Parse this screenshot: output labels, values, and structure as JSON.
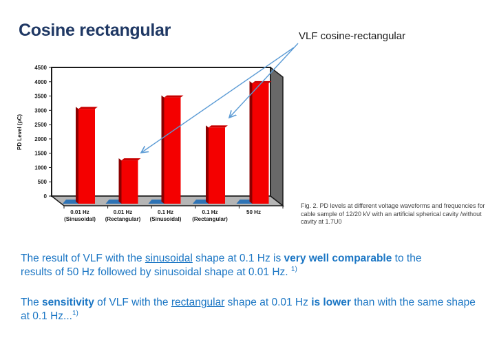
{
  "slide": {
    "title": "Cosine rectangular",
    "annotation_label": "VLF cosine-rectangular",
    "figure_caption": "Fig. 2. PD levels at different voltage waveforms and frequencies for cable sample of 12/20 kV with an artificial spherical cavity /without cavity at 1.7U0"
  },
  "paragraphs": [
    {
      "segments": [
        {
          "t": "The result of VLF with the "
        },
        {
          "t": "sinusoidal",
          "u": true
        },
        {
          "t": " shape at 0.1 Hz is "
        },
        {
          "t": "very well comparable",
          "b": true
        },
        {
          "t": " to the\n"
        },
        {
          "t": "results of 50 Hz followed by sinusoidal shape at 0.01 Hz. "
        },
        {
          "t": "1)",
          "sup": true
        }
      ]
    },
    {
      "segments": [
        {
          "t": "The "
        },
        {
          "t": "sensitivity",
          "b": true
        },
        {
          "t": " of VLF with the "
        },
        {
          "t": "rectangular",
          "u": true
        },
        {
          "t": " shape at 0.01 Hz "
        },
        {
          "t": "is lower",
          "b": true
        },
        {
          "t": " than with the same shape\n"
        },
        {
          "t": "at 0.1 Hz..."
        },
        {
          "t": "1)",
          "sup": true
        }
      ]
    }
  ],
  "chart_data": {
    "type": "bar",
    "style": "3d-bar",
    "title": "",
    "xlabel": "",
    "ylabel": "PD Level (pC)",
    "ylim": [
      0,
      4500
    ],
    "ytick_step": 500,
    "grid": false,
    "legend": false,
    "categories": [
      [
        "0.01 Hz",
        "(Sinusoidal)"
      ],
      [
        "0.01 Hz",
        "(Rectangular)"
      ],
      [
        "0.1 Hz",
        "(Sinusoidal)"
      ],
      [
        "0.1 Hz",
        "(Rectangular)"
      ],
      [
        "50 Hz"
      ]
    ],
    "series": [
      {
        "name": "with cavity (red bars)",
        "values": [
          3050,
          1250,
          3450,
          2400,
          3950
        ]
      },
      {
        "name": "without cavity (blue bars)",
        "values": [
          0,
          0,
          0,
          0,
          0
        ]
      }
    ]
  },
  "colors": {
    "title_navy": "#1F3864",
    "body_blue": "#1B76C4",
    "caption_gray": "#3D3D3D",
    "arrow_blue": "#5B9BD5",
    "bar_red_front": "#F40000",
    "bar_red_side": "#8B0000",
    "bar_red_top": "#C90000",
    "pad_blue": "#2E73B5",
    "floor_gray": "#B5B5B5",
    "wall_gray": "#696969",
    "axis_black": "#1A1A1A"
  }
}
